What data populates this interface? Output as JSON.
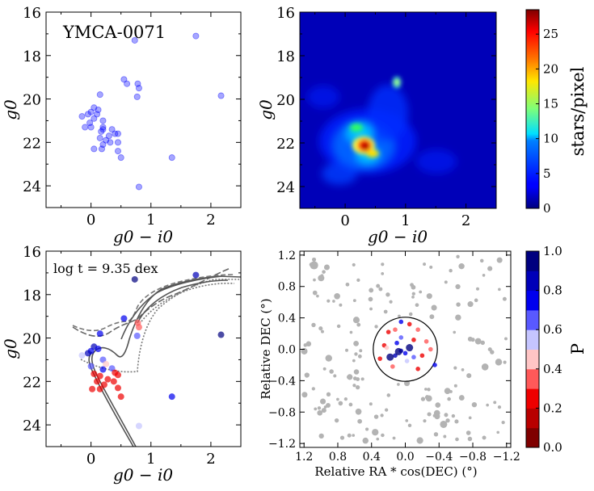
{
  "chart_data": [
    {
      "type": "scatter",
      "panel": "top-left",
      "title": "YMCA-0071",
      "xlabel": "g0 − i0",
      "ylabel": "g0",
      "xlim": [
        -0.75,
        2.5
      ],
      "ylim": [
        25,
        16
      ],
      "xticks": [
        0,
        1,
        2
      ],
      "yticks": [
        16,
        18,
        20,
        22,
        24
      ],
      "point_color": "#0000ff",
      "points": [
        [
          0.73,
          17.3
        ],
        [
          1.75,
          17.1
        ],
        [
          0.55,
          19.1
        ],
        [
          0.6,
          19.3
        ],
        [
          0.78,
          19.3
        ],
        [
          0.8,
          19.5
        ],
        [
          0.77,
          19.9
        ],
        [
          0.15,
          19.8
        ],
        [
          2.17,
          19.85
        ],
        [
          0.05,
          20.4
        ],
        [
          0.12,
          20.5
        ],
        [
          0.0,
          20.6
        ],
        [
          0.1,
          20.7
        ],
        [
          -0.05,
          20.7
        ],
        [
          -0.15,
          20.8
        ],
        [
          0.05,
          20.9
        ],
        [
          0.2,
          21.0
        ],
        [
          -0.02,
          21.1
        ],
        [
          0.0,
          21.3
        ],
        [
          0.2,
          21.4
        ],
        [
          0.17,
          21.5
        ],
        [
          0.2,
          21.3
        ],
        [
          0.35,
          21.4
        ],
        [
          -0.1,
          21.3
        ],
        [
          0.4,
          21.6
        ],
        [
          0.3,
          21.7
        ],
        [
          0.45,
          21.6
        ],
        [
          0.15,
          21.8
        ],
        [
          0.25,
          21.9
        ],
        [
          0.32,
          22.0
        ],
        [
          0.45,
          22.0
        ],
        [
          0.2,
          22.1
        ],
        [
          0.05,
          22.3
        ],
        [
          0.18,
          22.3
        ],
        [
          0.45,
          22.4
        ],
        [
          0.5,
          22.7
        ],
        [
          1.35,
          22.7
        ],
        [
          0.8,
          24.05
        ]
      ]
    },
    {
      "type": "heatmap",
      "panel": "top-right",
      "xlabel": "g0 − i0",
      "ylabel": "g0",
      "xlim": [
        -0.75,
        2.5
      ],
      "ylim": [
        25,
        16
      ],
      "xticks": [
        0,
        1,
        2
      ],
      "yticks": [
        16,
        18,
        20,
        22,
        24
      ],
      "colorbar": {
        "label": "stars/pixel",
        "min": 0,
        "max": 28.5,
        "ticks": [
          0,
          5,
          10,
          15,
          20,
          25
        ],
        "colormap": "jet"
      },
      "peaks": [
        {
          "x": 0.25,
          "y": 22.2,
          "value": 28
        },
        {
          "x": 0.25,
          "y": 21.5,
          "value": 14
        },
        {
          "x": 0.85,
          "y": 19.1,
          "value": 12
        }
      ]
    },
    {
      "type": "scatter",
      "panel": "bottom-left",
      "annotation": "log t = 9.35 dex",
      "xlabel": "g0 − i0",
      "ylabel": "g0",
      "xlim": [
        -0.75,
        2.5
      ],
      "ylim": [
        25,
        16
      ],
      "xticks": [
        0,
        1,
        2
      ],
      "yticks": [
        16,
        18,
        20,
        22,
        24
      ],
      "isochrone_color": "#555555",
      "points": [
        {
          "x": 0.73,
          "y": 17.3,
          "p": 0.95
        },
        {
          "x": 1.75,
          "y": 17.1,
          "p": 0.8
        },
        {
          "x": 0.55,
          "y": 19.1,
          "p": 0.75
        },
        {
          "x": 0.78,
          "y": 19.3,
          "p": 0.3
        },
        {
          "x": 0.8,
          "y": 19.5,
          "p": 0.3
        },
        {
          "x": 0.77,
          "y": 19.9,
          "p": 0.6
        },
        {
          "x": 0.15,
          "y": 19.8,
          "p": 0.7
        },
        {
          "x": 2.17,
          "y": 19.85,
          "p": 0.95
        },
        {
          "x": 0.05,
          "y": 20.4,
          "p": 0.8
        },
        {
          "x": 0.12,
          "y": 20.5,
          "p": 0.75
        },
        {
          "x": 0.0,
          "y": 20.6,
          "p": 0.75
        },
        {
          "x": -0.05,
          "y": 20.7,
          "p": 0.8
        },
        {
          "x": -0.15,
          "y": 20.8,
          "p": 0.5
        },
        {
          "x": 0.2,
          "y": 21.0,
          "p": 0.65
        },
        {
          "x": 0.0,
          "y": 21.3,
          "p": 0.6
        },
        {
          "x": 0.25,
          "y": 21.2,
          "p": 0.45
        },
        {
          "x": 0.35,
          "y": 21.4,
          "p": 0.6
        },
        {
          "x": 0.2,
          "y": 21.45,
          "p": 0.7
        },
        {
          "x": 0.05,
          "y": 21.65,
          "p": 0.2
        },
        {
          "x": 0.4,
          "y": 21.6,
          "p": 0.2
        },
        {
          "x": 0.45,
          "y": 21.7,
          "p": 0.2
        },
        {
          "x": 0.15,
          "y": 21.75,
          "p": 0.2
        },
        {
          "x": 0.28,
          "y": 21.9,
          "p": 0.2
        },
        {
          "x": 0.1,
          "y": 22.0,
          "p": 0.2
        },
        {
          "x": 0.38,
          "y": 22.0,
          "p": 0.2
        },
        {
          "x": 0.22,
          "y": 22.15,
          "p": 0.2
        },
        {
          "x": 0.02,
          "y": 22.35,
          "p": 0.2
        },
        {
          "x": 0.15,
          "y": 22.35,
          "p": 0.2
        },
        {
          "x": 0.45,
          "y": 22.3,
          "p": 0.2
        },
        {
          "x": 0.5,
          "y": 22.7,
          "p": 0.2
        },
        {
          "x": 1.35,
          "y": 22.7,
          "p": 0.7
        },
        {
          "x": 0.8,
          "y": 24.05,
          "p": 0.55
        }
      ]
    },
    {
      "type": "scatter",
      "panel": "bottom-right",
      "xlabel": "Relative RA * cos(DEC) (°)",
      "ylabel": "Relative DEC (°)",
      "xlim": [
        1.25,
        -1.25
      ],
      "ylim": [
        -1.25,
        1.25
      ],
      "xticks": [
        1.2,
        0.8,
        0.4,
        0.0,
        -0.4,
        -0.8,
        -1.2
      ],
      "xtick_labels": [
        "1.2",
        "0.8",
        "0.4",
        "0.0",
        "−0.4",
        "−0.8",
        "−1.2"
      ],
      "yticks": [
        1.2,
        0.8,
        0.4,
        0.0,
        -0.4,
        -0.8,
        -1.2
      ],
      "ytick_labels": [
        "1.2",
        "0.8",
        "0.4",
        "0.0",
        "−0.4",
        "−0.8",
        "−1.2"
      ],
      "circle_radius": 0.38,
      "field_star_color": "#b3b3b3",
      "colorbar": {
        "label": "P",
        "min": 0,
        "max": 1,
        "ticks": [
          0.0,
          0.2,
          0.4,
          0.6,
          0.8,
          1.0
        ],
        "tick_labels": [
          "0.0",
          "0.2",
          "0.4",
          "0.6",
          "0.8",
          "1.0"
        ],
        "bins": [
          "#7f0000",
          "#b80000",
          "#ee0000",
          "#ff5959",
          "#ffc5c5",
          "#c5c5ff",
          "#5959ff",
          "#0000ee",
          "#0000b8",
          "#00007f"
        ]
      },
      "members": [
        {
          "x": 0.05,
          "y": 0.35,
          "p": 0.7
        },
        {
          "x": -0.05,
          "y": 0.32,
          "p": 0.25
        },
        {
          "x": 0.12,
          "y": 0.25,
          "p": 0.3
        },
        {
          "x": 0.2,
          "y": 0.22,
          "p": 0.2
        },
        {
          "x": -0.15,
          "y": 0.25,
          "p": 0.3
        },
        {
          "x": -0.25,
          "y": 0.1,
          "p": 0.35
        },
        {
          "x": 0.25,
          "y": 0.05,
          "p": 0.2
        },
        {
          "x": 0.1,
          "y": 0.08,
          "p": 0.75
        },
        {
          "x": 0.05,
          "y": -0.02,
          "p": 0.8
        },
        {
          "x": 0.0,
          "y": -0.05,
          "p": 0.75
        },
        {
          "x": -0.05,
          "y": 0.02,
          "p": 0.9
        },
        {
          "x": 0.12,
          "y": -0.08,
          "p": 0.85
        },
        {
          "x": -0.1,
          "y": -0.1,
          "p": 0.65
        },
        {
          "x": 0.18,
          "y": -0.1,
          "p": 0.95
        },
        {
          "x": -0.02,
          "y": -0.15,
          "p": 0.55
        },
        {
          "x": 0.3,
          "y": -0.12,
          "p": 0.2
        },
        {
          "x": -0.2,
          "y": -0.08,
          "p": 0.25
        },
        {
          "x": -0.3,
          "y": 0.0,
          "p": 0.3
        },
        {
          "x": -0.35,
          "y": -0.2,
          "p": 0.7
        },
        {
          "x": 0.15,
          "y": -0.22,
          "p": 0.3
        },
        {
          "x": -0.15,
          "y": -0.25,
          "p": 0.2
        },
        {
          "x": 0.05,
          "y": 0.15,
          "p": 0.6
        },
        {
          "x": 0.08,
          "y": -0.03,
          "p": 0.9
        },
        {
          "x": 0.22,
          "y": 0.02,
          "p": 0.45
        },
        {
          "x": -0.1,
          "y": 0.12,
          "p": 0.2
        }
      ]
    }
  ]
}
